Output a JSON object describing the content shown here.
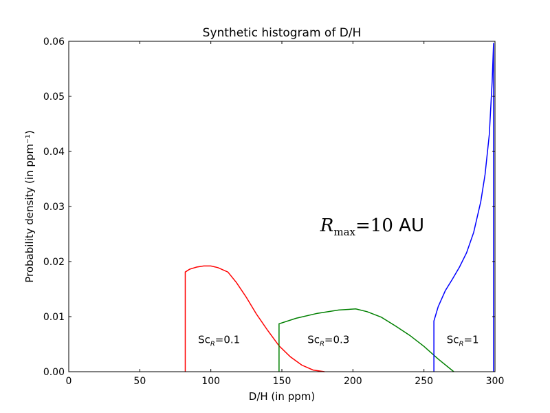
{
  "chart_data": {
    "type": "line",
    "title": "Synthetic histogram of D/H",
    "xlabel": "D/H (in ppm)",
    "ylabel": "Probability density (in ppm⁻¹)",
    "xlim": [
      0,
      300
    ],
    "ylim": [
      0,
      0.06
    ],
    "x_ticks": [
      "0",
      "50",
      "100",
      "150",
      "200",
      "250",
      "300"
    ],
    "y_ticks": [
      "0.00",
      "0.01",
      "0.02",
      "0.03",
      "0.04",
      "0.05",
      "0.06"
    ],
    "grid": false,
    "legend": "none",
    "series": [
      {
        "color": "#ff0000",
        "label": "Sc_R =0.1",
        "x": [
          82,
          82,
          85,
          90,
          95,
          100,
          105,
          112,
          118,
          125,
          132,
          140,
          148,
          156,
          164,
          172,
          180
        ],
        "y": [
          0.0,
          0.0181,
          0.0186,
          0.019,
          0.0192,
          0.0192,
          0.0189,
          0.0181,
          0.0162,
          0.0135,
          0.0105,
          0.0075,
          0.0047,
          0.0027,
          0.0012,
          0.0003,
          0.0
        ]
      },
      {
        "color": "#008000",
        "label": "Sc_R =0.3",
        "x": [
          148,
          148,
          160,
          175,
          190,
          202,
          210,
          220,
          230,
          240,
          250,
          260,
          271
        ],
        "y": [
          0.0,
          0.0087,
          0.0097,
          0.0106,
          0.0112,
          0.0114,
          0.0109,
          0.0099,
          0.0083,
          0.0066,
          0.0046,
          0.0023,
          0.0
        ]
      },
      {
        "color": "#0000ff",
        "label": "Sc_R =1",
        "x": [
          257,
          257,
          260,
          265,
          270,
          275,
          280,
          285,
          290,
          293,
          296,
          298,
          299,
          299
        ],
        "y": [
          0.0,
          0.0092,
          0.0118,
          0.0147,
          0.0168,
          0.019,
          0.0216,
          0.0253,
          0.0309,
          0.0358,
          0.0431,
          0.0527,
          0.0597,
          0.0
        ]
      }
    ],
    "annotations": [
      {
        "text": "R",
        "sub": "max",
        "rest": "=10",
        "unit": "AU",
        "x": 177,
        "y": 0.0255
      },
      {
        "text": "Sc",
        "sub": "R",
        "rest": "=0.1",
        "x": 91,
        "y": 0.0052
      },
      {
        "text": "Sc",
        "sub": "R",
        "rest": "=0.3",
        "x": 168,
        "y": 0.0052
      },
      {
        "text": "Sc",
        "sub": "R",
        "rest": "=1",
        "x": 266,
        "y": 0.0052
      }
    ]
  }
}
